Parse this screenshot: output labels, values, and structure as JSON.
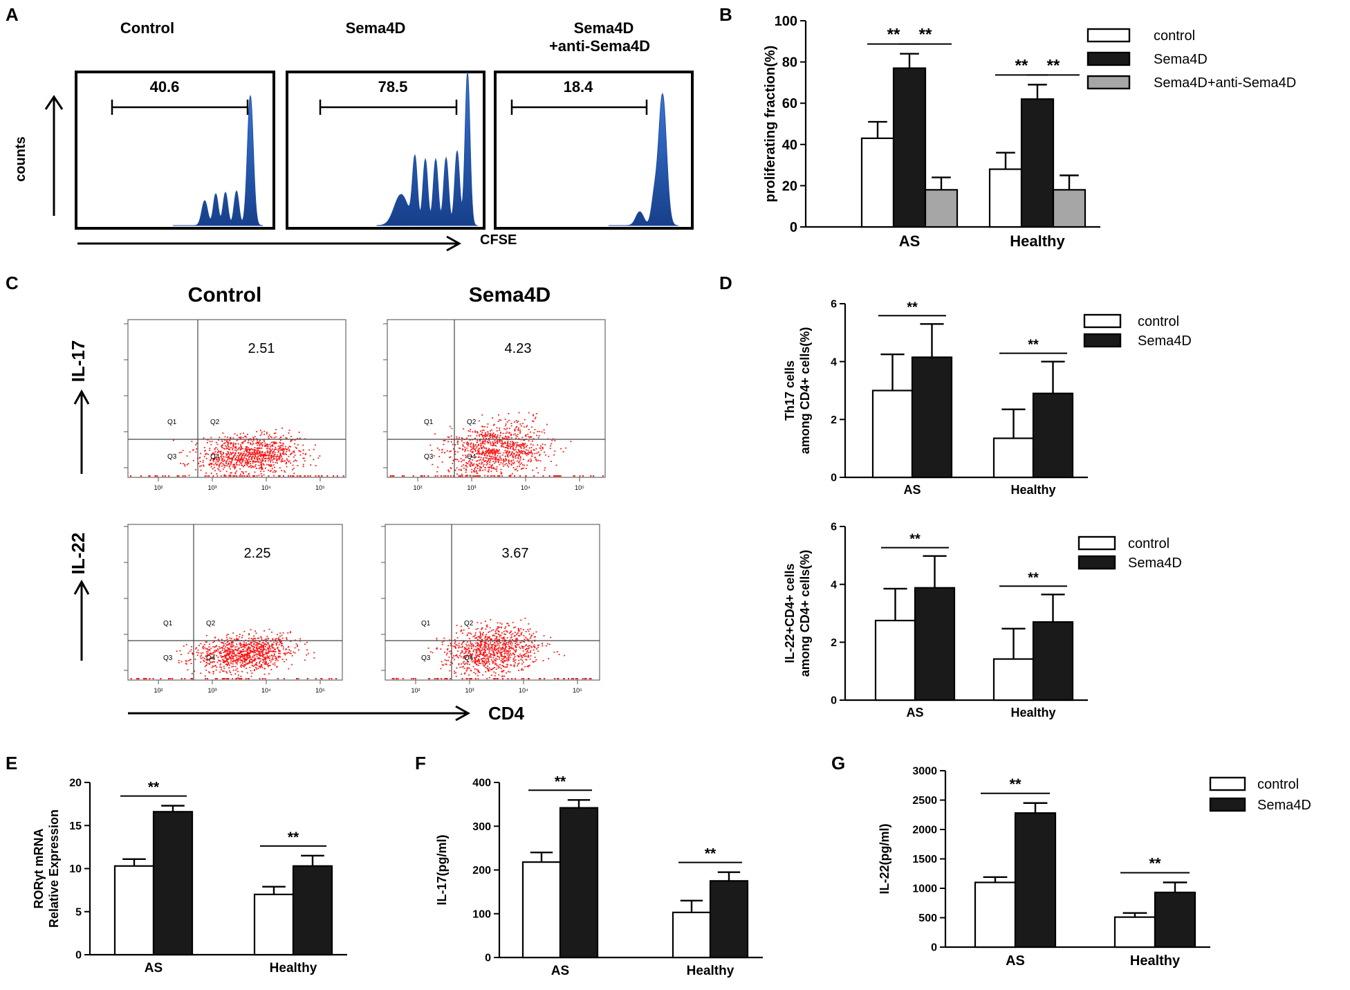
{
  "colors": {
    "control": "#ffffff",
    "sema4d": "#1a1a1a",
    "anti": "#a6a6a6",
    "histogram": "#2459b0",
    "dots": "#ff1010",
    "axis": "#000000"
  },
  "panels": {
    "A": {
      "label": "A",
      "ylabel": "counts",
      "xlabel": "CFSE",
      "plots": [
        {
          "title": "Control",
          "value": "40.6"
        },
        {
          "title": "Sema4D",
          "value": "78.5"
        },
        {
          "title": "Sema4D",
          "title2": "+anti-Sema4D",
          "value": "18.4"
        }
      ]
    },
    "B": {
      "label": "B"
    },
    "C": {
      "label": "C",
      "col_titles": [
        "Control",
        "Sema4D"
      ],
      "row_labels": [
        "IL-17",
        "IL-22"
      ],
      "xlabel": "CD4",
      "values": [
        [
          "2.51",
          "4.23"
        ],
        [
          "2.25",
          "3.67"
        ]
      ],
      "quadrants": [
        "Q1",
        "Q2",
        "Q3",
        "Q4"
      ],
      "ticks": [
        "10²",
        "10³",
        "10⁴",
        "10⁵"
      ]
    },
    "D": {
      "label": "D"
    },
    "E": {
      "label": "E"
    },
    "F": {
      "label": "F"
    },
    "G": {
      "label": "G"
    }
  },
  "chart_data": [
    {
      "id": "B",
      "type": "bar",
      "title": "",
      "categories": [
        "AS",
        "Healthy"
      ],
      "ylabel": "proliferating fraction(%)",
      "xlabel": "",
      "ylim": [
        0,
        100
      ],
      "yticks": [
        0,
        20,
        40,
        60,
        80,
        100
      ],
      "series": [
        {
          "name": "control",
          "values": [
            43,
            28
          ],
          "errors": [
            8,
            8
          ]
        },
        {
          "name": "Sema4D",
          "values": [
            77,
            62
          ],
          "errors": [
            7,
            7
          ]
        },
        {
          "name": "Sema4D+anti-Sema4D",
          "values": [
            18,
            18
          ],
          "errors": [
            6,
            7
          ]
        }
      ],
      "significance": [
        {
          "label": "**",
          "group": 0,
          "from": 0,
          "to": 1
        },
        {
          "label": "**",
          "group": 0,
          "from": 1,
          "to": 2
        },
        {
          "label": "**",
          "group": 1,
          "from": 0,
          "to": 1
        },
        {
          "label": "**",
          "group": 1,
          "from": 1,
          "to": 2
        }
      ],
      "legend": "right"
    },
    {
      "id": "D1",
      "type": "bar",
      "title": "",
      "categories": [
        "AS",
        "Healthy"
      ],
      "ylabel": [
        "Th17 cells",
        "among CD4+ cells(%)"
      ],
      "ylim": [
        0,
        6
      ],
      "yticks": [
        0,
        2,
        4,
        6
      ],
      "series": [
        {
          "name": "control",
          "values": [
            3.0,
            1.35
          ],
          "errors": [
            1.25,
            1.0
          ]
        },
        {
          "name": "Sema4D",
          "values": [
            4.15,
            2.9
          ],
          "errors": [
            1.15,
            1.1
          ]
        }
      ],
      "significance": [
        {
          "label": "**",
          "group": 0,
          "from": 0,
          "to": 1
        },
        {
          "label": "**",
          "group": 1,
          "from": 0,
          "to": 1
        }
      ],
      "legend": "right"
    },
    {
      "id": "D2",
      "type": "bar",
      "title": "",
      "categories": [
        "AS",
        "Healthy"
      ],
      "ylabel": [
        "IL-22+CD4+ cells",
        "among CD4+ cells(%)"
      ],
      "ylim": [
        0,
        6
      ],
      "yticks": [
        0,
        2,
        4,
        6
      ],
      "series": [
        {
          "name": "control",
          "values": [
            2.75,
            1.42
          ],
          "errors": [
            1.1,
            1.05
          ]
        },
        {
          "name": "Sema4D",
          "values": [
            3.88,
            2.7
          ],
          "errors": [
            1.1,
            0.95
          ]
        }
      ],
      "significance": [
        {
          "label": "**",
          "group": 0,
          "from": 0,
          "to": 1
        },
        {
          "label": "**",
          "group": 1,
          "from": 0,
          "to": 1
        }
      ],
      "legend": "right"
    },
    {
      "id": "E",
      "type": "bar",
      "title": "",
      "categories": [
        "AS",
        "Healthy"
      ],
      "ylabel": [
        "RORγt mRNA",
        "Relative Expression"
      ],
      "ylim": [
        0,
        20
      ],
      "yticks": [
        0,
        5,
        10,
        15,
        20
      ],
      "series": [
        {
          "name": "control",
          "values": [
            10.3,
            7.0
          ],
          "errors": [
            0.8,
            0.9
          ]
        },
        {
          "name": "Sema4D",
          "values": [
            16.6,
            10.3
          ],
          "errors": [
            0.7,
            1.2
          ]
        }
      ],
      "significance": [
        {
          "label": "**",
          "group": 0,
          "from": 0,
          "to": 1
        },
        {
          "label": "**",
          "group": 1,
          "from": 0,
          "to": 1
        }
      ],
      "legend": "none"
    },
    {
      "id": "F",
      "type": "bar",
      "title": "",
      "categories": [
        "AS",
        "Healthy"
      ],
      "ylabel": "IL-17(pg/ml)",
      "ylim": [
        0,
        400
      ],
      "yticks": [
        0,
        100,
        200,
        300,
        400
      ],
      "series": [
        {
          "name": "control",
          "values": [
            218,
            103
          ],
          "errors": [
            22,
            27
          ]
        },
        {
          "name": "Sema4D",
          "values": [
            342,
            175
          ],
          "errors": [
            18,
            20
          ]
        }
      ],
      "significance": [
        {
          "label": "**",
          "group": 0,
          "from": 0,
          "to": 1
        },
        {
          "label": "**",
          "group": 1,
          "from": 0,
          "to": 1
        }
      ],
      "legend": "none"
    },
    {
      "id": "G",
      "type": "bar",
      "title": "",
      "categories": [
        "AS",
        "Healthy"
      ],
      "ylabel": "IL-22(pg/ml)",
      "ylim": [
        0,
        3000
      ],
      "yticks": [
        0,
        500,
        1000,
        1500,
        2000,
        2500,
        3000
      ],
      "series": [
        {
          "name": "control",
          "values": [
            1100,
            510
          ],
          "errors": [
            90,
            70
          ]
        },
        {
          "name": "Sema4D",
          "values": [
            2280,
            930
          ],
          "errors": [
            170,
            170
          ]
        }
      ],
      "significance": [
        {
          "label": "**",
          "group": 0,
          "from": 0,
          "to": 1
        },
        {
          "label": "**",
          "group": 1,
          "from": 0,
          "to": 1
        }
      ],
      "legend": "right"
    }
  ]
}
